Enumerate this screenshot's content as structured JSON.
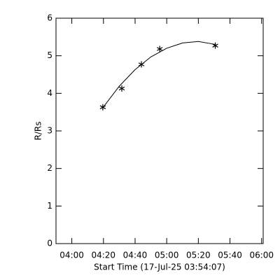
{
  "chart_data": {
    "type": "line",
    "x_label": "Start Time (17-Jul-25 03:54:07)",
    "y_label": "R/Rs",
    "xlim": [
      230,
      361
    ],
    "ylim": [
      0,
      6
    ],
    "xticks": [
      {
        "value": 240,
        "label": "04:00"
      },
      {
        "value": 260,
        "label": "04:20"
      },
      {
        "value": 280,
        "label": "04:40"
      },
      {
        "value": 300,
        "label": "05:00"
      },
      {
        "value": 320,
        "label": "05:20"
      },
      {
        "value": 340,
        "label": "05:40"
      },
      {
        "value": 360,
        "label": "06:00"
      }
    ],
    "yticks": [
      0,
      1,
      2,
      3,
      4,
      5,
      6
    ],
    "series": [
      {
        "color": "#000000",
        "marker": "asterisk",
        "x": [
          259.6,
          271.6,
          284,
          295.6,
          330.7
        ],
        "values": [
          3.63,
          4.13,
          4.77,
          5.18,
          5.27
        ]
      },
      {
        "color": "#000000",
        "marker": "none",
        "x": [
          260,
          270,
          280,
          290,
          300,
          310,
          320,
          331
        ],
        "values": [
          3.64,
          4.19,
          4.63,
          4.97,
          5.2,
          5.34,
          5.38,
          5.3
        ]
      }
    ]
  }
}
